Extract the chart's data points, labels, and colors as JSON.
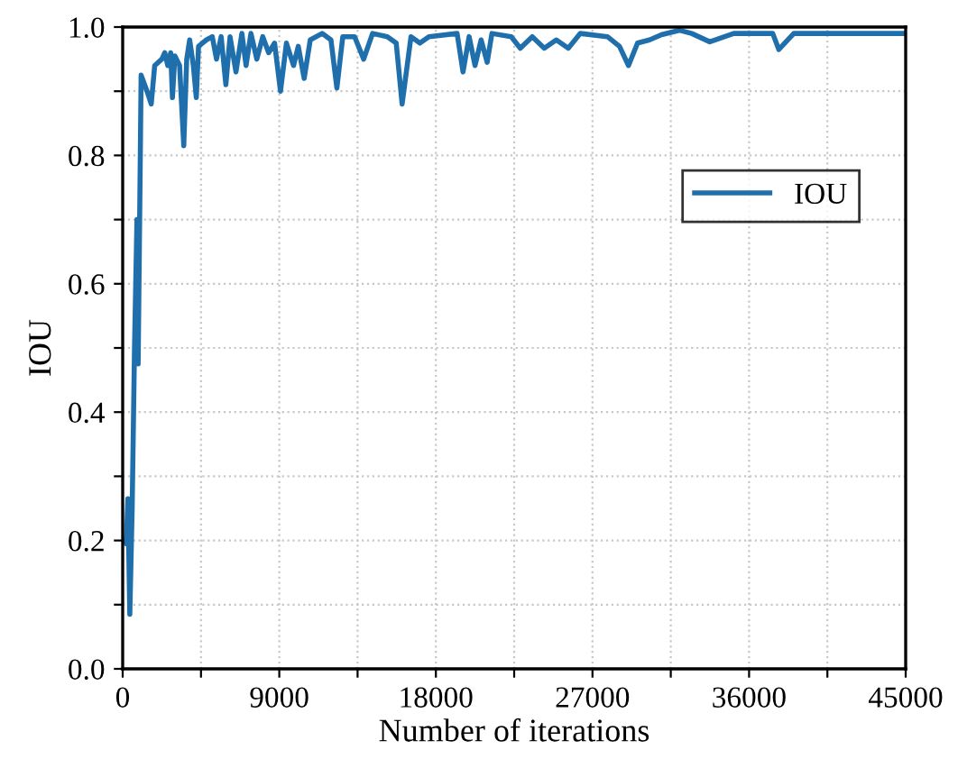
{
  "chart_data": {
    "type": "line",
    "xlabel": "Number of iterations",
    "ylabel": "IOU",
    "xlim": [
      0,
      45000
    ],
    "xticks": [
      0,
      {
        "value": 4500,
        "label": null
      },
      9000,
      {
        "value": 13500,
        "label": null
      },
      18000,
      {
        "value": 22500,
        "label": null
      },
      27000,
      {
        "value": 31500,
        "label": null
      },
      36000,
      {
        "value": 40500,
        "label": null
      },
      45000
    ],
    "ylim": [
      0.0,
      1.0
    ],
    "yticks": [
      {
        "value": 0.0,
        "label": "0.0"
      },
      {
        "value": 0.1,
        "label": null
      },
      0.2,
      {
        "value": 0.3,
        "label": null
      },
      0.4,
      {
        "value": 0.5,
        "label": null
      },
      0.6,
      {
        "value": 0.7,
        "label": null
      },
      0.8,
      {
        "value": 0.9,
        "label": null
      },
      {
        "value": 1.0,
        "label": "1.0"
      }
    ],
    "grid": true,
    "legend": "top right",
    "marker": "none",
    "line_style": "solid",
    "series": [
      {
        "name": "IOU",
        "color": "#1f6fad",
        "x": [
          0,
          200,
          300,
          410,
          545,
          680,
          820,
          890,
          1060,
          1400,
          1640,
          1840,
          2250,
          2420,
          2590,
          2760,
          2860,
          3000,
          3270,
          3510,
          3680,
          3850,
          4060,
          4230,
          4360,
          4810,
          5150,
          5390,
          5660,
          5930,
          6170,
          6510,
          6850,
          7090,
          7370,
          7710,
          8050,
          8390,
          8730,
          9070,
          9410,
          9820,
          10090,
          10430,
          10780,
          11460,
          11970,
          12310,
          12650,
          13330,
          13850,
          14360,
          15210,
          15720,
          16060,
          16570,
          17080,
          17600,
          19220,
          19560,
          19910,
          20250,
          20600,
          20950,
          21220,
          22330,
          22850,
          23540,
          24230,
          24920,
          25610,
          26300,
          27860,
          28550,
          29070,
          29590,
          30280,
          30970,
          32010,
          32700,
          33740,
          35120,
          37360,
          37710,
          38570,
          45000
        ],
        "values": [
          0.2,
          0.195,
          0.265,
          0.085,
          0.25,
          0.5,
          0.7,
          0.475,
          0.925,
          0.9,
          0.88,
          0.94,
          0.95,
          0.96,
          0.94,
          0.96,
          0.89,
          0.955,
          0.94,
          0.815,
          0.95,
          0.98,
          0.94,
          0.89,
          0.97,
          0.98,
          0.985,
          0.95,
          0.985,
          0.91,
          0.985,
          0.93,
          0.99,
          0.94,
          0.99,
          0.95,
          0.985,
          0.96,
          0.975,
          0.9,
          0.975,
          0.94,
          0.97,
          0.92,
          0.98,
          0.99,
          0.98,
          0.905,
          0.985,
          0.985,
          0.95,
          0.99,
          0.985,
          0.975,
          0.88,
          0.985,
          0.975,
          0.985,
          0.99,
          0.93,
          0.985,
          0.94,
          0.98,
          0.945,
          0.99,
          0.985,
          0.967,
          0.985,
          0.967,
          0.98,
          0.967,
          0.99,
          0.985,
          0.97,
          0.94,
          0.975,
          0.98,
          0.988,
          0.995,
          0.99,
          0.977,
          0.99,
          0.99,
          0.965,
          0.99,
          0.99
        ]
      }
    ]
  }
}
